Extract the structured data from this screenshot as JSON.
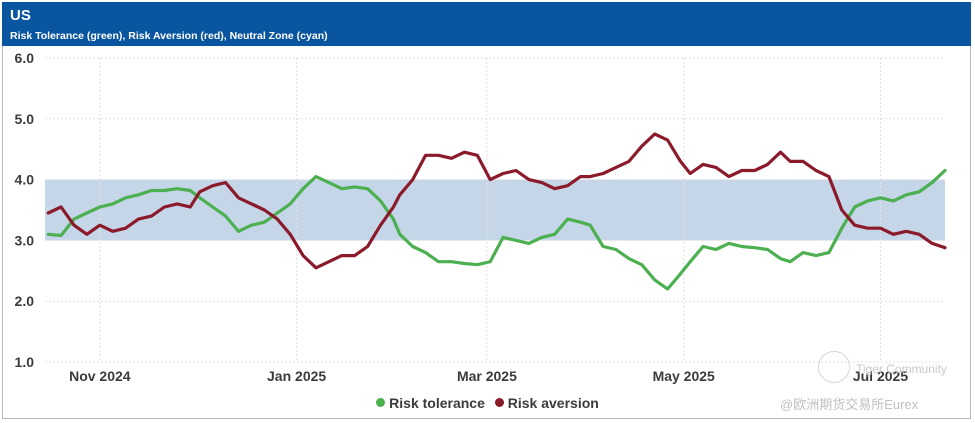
{
  "header": {
    "title": "US",
    "subtitle": "Risk Tolerance (green), Risk Aversion (red), Neutral Zone (cyan)"
  },
  "watermark": {
    "brand": "Tiger Community",
    "source": "@欧洲期货交易所Eurex"
  },
  "colors": {
    "header_bg": "#0a55a0",
    "tolerance": "#4caf50",
    "aversion": "#8b1a2b",
    "neutral_zone": "#c5d6e8"
  },
  "chart_data": {
    "type": "line",
    "title": "US",
    "subtitle": "Risk Tolerance (green), Risk Aversion (red), Neutral Zone (cyan)",
    "xlabel": "",
    "ylabel": "",
    "ylim": [
      1.0,
      6.0
    ],
    "yticks": [
      "6.0",
      "5.0",
      "4.0",
      "3.0",
      "2.0",
      "1.0"
    ],
    "xlim": [
      "2024-10-15",
      "2025-07-21"
    ],
    "xticks": [
      {
        "date": "2024-11-01",
        "label": "Nov 2024"
      },
      {
        "date": "2025-01-01",
        "label": "Jan 2025"
      },
      {
        "date": "2025-03-01",
        "label": "Mar 2025"
      },
      {
        "date": "2025-05-01",
        "label": "May 2025"
      },
      {
        "date": "2025-07-01",
        "label": "Jul 2025"
      }
    ],
    "grid": true,
    "legend_position": "bottom-center",
    "bands": [
      {
        "name": "Neutral Zone",
        "from": 3.0,
        "to": 4.0
      }
    ],
    "series": [
      {
        "name": "Risk tolerance",
        "points": [
          [
            "2024-10-16",
            3.1
          ],
          [
            "2024-10-20",
            3.08
          ],
          [
            "2024-10-24",
            3.35
          ],
          [
            "2024-10-28",
            3.45
          ],
          [
            "2024-11-01",
            3.55
          ],
          [
            "2024-11-05",
            3.6
          ],
          [
            "2024-11-09",
            3.7
          ],
          [
            "2024-11-13",
            3.75
          ],
          [
            "2024-11-17",
            3.82
          ],
          [
            "2024-11-21",
            3.82
          ],
          [
            "2024-11-25",
            3.85
          ],
          [
            "2024-11-29",
            3.82
          ],
          [
            "2024-12-02",
            3.7
          ],
          [
            "2024-12-06",
            3.55
          ],
          [
            "2024-12-10",
            3.4
          ],
          [
            "2024-12-14",
            3.15
          ],
          [
            "2024-12-18",
            3.25
          ],
          [
            "2024-12-22",
            3.3
          ],
          [
            "2024-12-26",
            3.45
          ],
          [
            "2024-12-30",
            3.6
          ],
          [
            "2025-01-03",
            3.85
          ],
          [
            "2025-01-07",
            4.05
          ],
          [
            "2025-01-11",
            3.95
          ],
          [
            "2025-01-15",
            3.85
          ],
          [
            "2025-01-19",
            3.88
          ],
          [
            "2025-01-23",
            3.85
          ],
          [
            "2025-01-27",
            3.65
          ],
          [
            "2025-01-31",
            3.35
          ],
          [
            "2025-02-02",
            3.1
          ],
          [
            "2025-02-06",
            2.9
          ],
          [
            "2025-02-10",
            2.8
          ],
          [
            "2025-02-14",
            2.65
          ],
          [
            "2025-02-18",
            2.65
          ],
          [
            "2025-02-22",
            2.62
          ],
          [
            "2025-02-26",
            2.6
          ],
          [
            "2025-03-02",
            2.65
          ],
          [
            "2025-03-06",
            3.05
          ],
          [
            "2025-03-10",
            3.0
          ],
          [
            "2025-03-14",
            2.95
          ],
          [
            "2025-03-18",
            3.05
          ],
          [
            "2025-03-22",
            3.1
          ],
          [
            "2025-03-26",
            3.35
          ],
          [
            "2025-03-30",
            3.3
          ],
          [
            "2025-04-02",
            3.25
          ],
          [
            "2025-04-06",
            2.9
          ],
          [
            "2025-04-10",
            2.85
          ],
          [
            "2025-04-14",
            2.7
          ],
          [
            "2025-04-18",
            2.6
          ],
          [
            "2025-04-22",
            2.35
          ],
          [
            "2025-04-26",
            2.2
          ],
          [
            "2025-04-30",
            2.45
          ],
          [
            "2025-05-03",
            2.65
          ],
          [
            "2025-05-07",
            2.9
          ],
          [
            "2025-05-11",
            2.85
          ],
          [
            "2025-05-15",
            2.95
          ],
          [
            "2025-05-19",
            2.9
          ],
          [
            "2025-05-23",
            2.88
          ],
          [
            "2025-05-27",
            2.85
          ],
          [
            "2025-05-31",
            2.7
          ],
          [
            "2025-06-03",
            2.65
          ],
          [
            "2025-06-07",
            2.8
          ],
          [
            "2025-06-11",
            2.75
          ],
          [
            "2025-06-15",
            2.8
          ],
          [
            "2025-06-19",
            3.2
          ],
          [
            "2025-06-23",
            3.55
          ],
          [
            "2025-06-27",
            3.65
          ],
          [
            "2025-07-01",
            3.7
          ],
          [
            "2025-07-05",
            3.65
          ],
          [
            "2025-07-09",
            3.75
          ],
          [
            "2025-07-13",
            3.8
          ],
          [
            "2025-07-17",
            3.95
          ],
          [
            "2025-07-21",
            4.15
          ]
        ]
      },
      {
        "name": "Risk aversion",
        "points": [
          [
            "2024-10-16",
            3.45
          ],
          [
            "2024-10-20",
            3.55
          ],
          [
            "2024-10-24",
            3.25
          ],
          [
            "2024-10-28",
            3.1
          ],
          [
            "2024-11-01",
            3.25
          ],
          [
            "2024-11-05",
            3.15
          ],
          [
            "2024-11-09",
            3.2
          ],
          [
            "2024-11-13",
            3.35
          ],
          [
            "2024-11-17",
            3.4
          ],
          [
            "2024-11-21",
            3.55
          ],
          [
            "2024-11-25",
            3.6
          ],
          [
            "2024-11-29",
            3.55
          ],
          [
            "2024-12-02",
            3.8
          ],
          [
            "2024-12-06",
            3.9
          ],
          [
            "2024-12-10",
            3.95
          ],
          [
            "2024-12-14",
            3.7
          ],
          [
            "2024-12-18",
            3.6
          ],
          [
            "2024-12-22",
            3.5
          ],
          [
            "2024-12-26",
            3.35
          ],
          [
            "2024-12-30",
            3.1
          ],
          [
            "2025-01-03",
            2.75
          ],
          [
            "2025-01-07",
            2.55
          ],
          [
            "2025-01-11",
            2.65
          ],
          [
            "2025-01-15",
            2.75
          ],
          [
            "2025-01-19",
            2.75
          ],
          [
            "2025-01-23",
            2.9
          ],
          [
            "2025-01-27",
            3.25
          ],
          [
            "2025-01-31",
            3.55
          ],
          [
            "2025-02-02",
            3.75
          ],
          [
            "2025-02-06",
            4.0
          ],
          [
            "2025-02-10",
            4.4
          ],
          [
            "2025-02-14",
            4.4
          ],
          [
            "2025-02-18",
            4.35
          ],
          [
            "2025-02-22",
            4.45
          ],
          [
            "2025-02-26",
            4.4
          ],
          [
            "2025-03-02",
            4.0
          ],
          [
            "2025-03-06",
            4.1
          ],
          [
            "2025-03-10",
            4.15
          ],
          [
            "2025-03-14",
            4.0
          ],
          [
            "2025-03-18",
            3.95
          ],
          [
            "2025-03-22",
            3.85
          ],
          [
            "2025-03-26",
            3.9
          ],
          [
            "2025-03-30",
            4.05
          ],
          [
            "2025-04-02",
            4.05
          ],
          [
            "2025-04-06",
            4.1
          ],
          [
            "2025-04-10",
            4.2
          ],
          [
            "2025-04-14",
            4.3
          ],
          [
            "2025-04-18",
            4.55
          ],
          [
            "2025-04-22",
            4.75
          ],
          [
            "2025-04-26",
            4.65
          ],
          [
            "2025-04-30",
            4.3
          ],
          [
            "2025-05-03",
            4.1
          ],
          [
            "2025-05-07",
            4.25
          ],
          [
            "2025-05-11",
            4.2
          ],
          [
            "2025-05-15",
            4.05
          ],
          [
            "2025-05-19",
            4.15
          ],
          [
            "2025-05-23",
            4.15
          ],
          [
            "2025-05-27",
            4.25
          ],
          [
            "2025-05-31",
            4.45
          ],
          [
            "2025-06-03",
            4.3
          ],
          [
            "2025-06-07",
            4.3
          ],
          [
            "2025-06-11",
            4.15
          ],
          [
            "2025-06-15",
            4.05
          ],
          [
            "2025-06-19",
            3.5
          ],
          [
            "2025-06-23",
            3.25
          ],
          [
            "2025-06-27",
            3.2
          ],
          [
            "2025-07-01",
            3.2
          ],
          [
            "2025-07-05",
            3.1
          ],
          [
            "2025-07-09",
            3.15
          ],
          [
            "2025-07-13",
            3.1
          ],
          [
            "2025-07-17",
            2.95
          ],
          [
            "2025-07-21",
            2.88
          ]
        ]
      }
    ]
  }
}
